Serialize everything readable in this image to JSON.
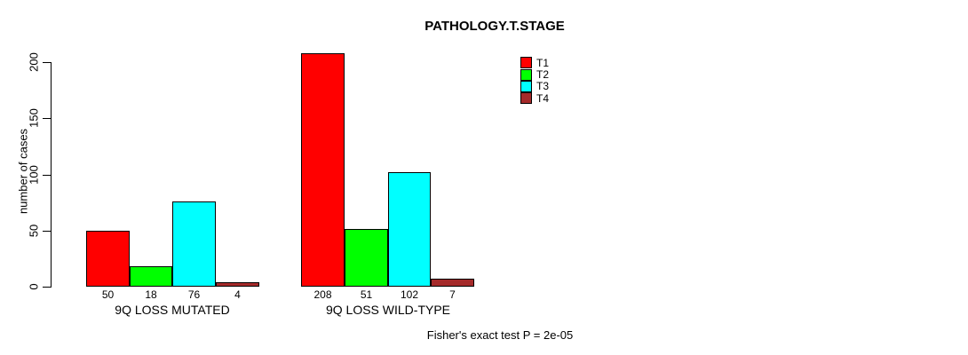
{
  "title": "PATHOLOGY.T.STAGE",
  "annotation": "Fisher's exact test P = 2e-05",
  "y_axis": {
    "label": "number of cases",
    "ticks": [
      0,
      50,
      100,
      150,
      200
    ]
  },
  "legend": {
    "items": [
      {
        "label": "T1",
        "color": "#FF0000"
      },
      {
        "label": "T2",
        "color": "#00FF00"
      },
      {
        "label": "T3",
        "color": "#00FFFF"
      },
      {
        "label": "T4",
        "color": "#A52A2A"
      }
    ]
  },
  "chart_data": {
    "type": "bar",
    "title": "PATHOLOGY.T.STAGE",
    "xlabel": "",
    "ylabel": "number of cases",
    "categories": [
      "9Q LOSS MUTATED",
      "9Q LOSS WILD-TYPE"
    ],
    "series": [
      {
        "name": "T1",
        "color": "#FF0000",
        "values": [
          50,
          208
        ]
      },
      {
        "name": "T2",
        "color": "#00FF00",
        "values": [
          18,
          51
        ]
      },
      {
        "name": "T3",
        "color": "#00FFFF",
        "values": [
          76,
          102
        ]
      },
      {
        "name": "T4",
        "color": "#A52A2A",
        "values": [
          4,
          7
        ]
      }
    ],
    "bar_value_labels": [
      [
        50,
        18,
        76,
        4
      ],
      [
        208,
        51,
        102,
        7
      ]
    ],
    "yticks": [
      0,
      50,
      100,
      150,
      200
    ],
    "ylim": [
      0,
      210
    ],
    "grid": false,
    "legend_position": "top-right",
    "annotation": "Fisher's exact test P = 2e-05"
  }
}
